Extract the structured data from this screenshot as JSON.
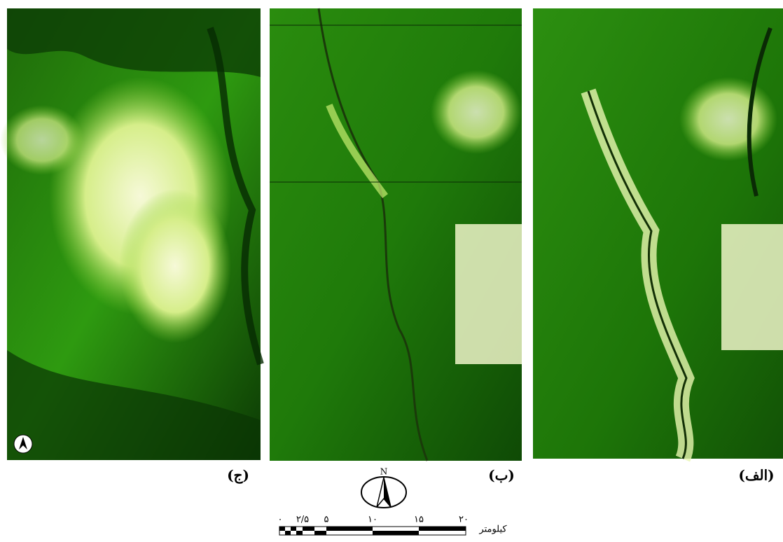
{
  "panels": [
    {
      "label": "(ج)"
    },
    {
      "label": "(ب)"
    },
    {
      "label": "(الف)"
    }
  ],
  "north_arrow": {
    "label": "N"
  },
  "scale_bar": {
    "labels": [
      "۰",
      "۲/۵",
      "۵",
      "۱۰",
      "۱۵",
      "۲۰"
    ],
    "unit": "کیلومتر"
  }
}
